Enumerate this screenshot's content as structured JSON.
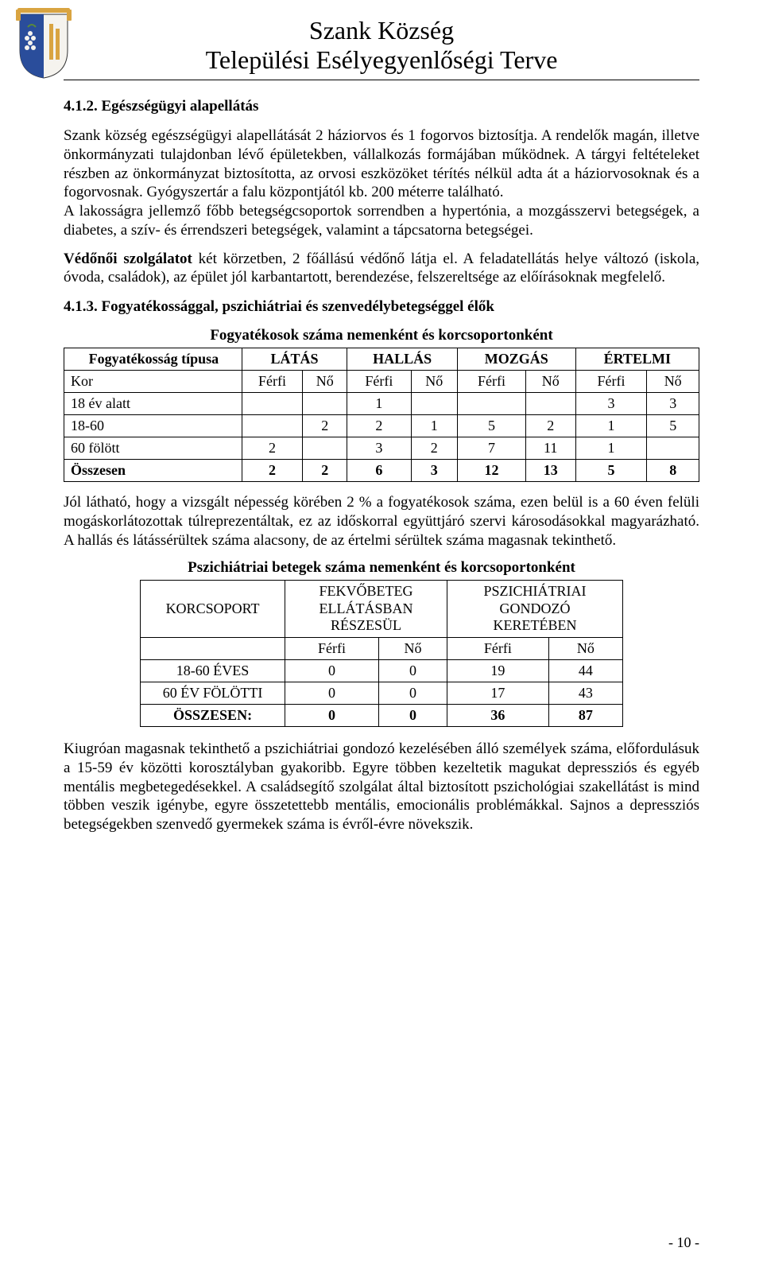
{
  "header": {
    "title1": "Szank Község",
    "title2": "Települési Esélyegyenlőségi Terve",
    "crest_colors": {
      "shield_blue": "#2a4d9b",
      "shield_white": "#ffffff",
      "ribbon_gold": "#d9a441",
      "grapes": "#f5f3ee",
      "leaf_green": "#5a8a3a"
    }
  },
  "section412": {
    "heading": "4.1.2. Egészségügyi alapellátás",
    "para1": "Szank község egészségügyi alapellátását 2 háziorvos és 1  fogorvos biztosítja. A rendelők magán, illetve önkormányzati tulajdonban lévő épületekben, vállalkozás formájában működnek. A tárgyi feltételeket részben az önkormányzat biztosította, az orvosi eszközöket térítés nélkül adta át a háziorvosoknak és a fogorvosnak. Gyógyszertár a falu központjától kb. 200 méterre található.",
    "para2": "A lakosságra jellemző főbb betegségcsoportok sorrendben a hypertónia, a mozgásszervi betegségek, a diabetes, a szív- és érrendszeri betegségek, valamint a tápcsatorna betegségei.",
    "para3_bold": "Védőnői szolgálatot",
    "para3_rest": " két körzetben, 2 főállású védőnő látja el. A feladatellátás helye változó (iskola, óvoda, családok), az épület jól karbantartott, berendezése, felszereltsége az előírásoknak megfelelő."
  },
  "section413": {
    "heading": "4.1.3. Fogyatékossággal, pszichiátriai és szenvedélybetegséggel élők",
    "table1": {
      "caption": "Fogyatékosok száma nemenként és korcsoportonként",
      "type_head": "Fogyatékosság típusa",
      "cats": [
        "LÁTÁS",
        "HALLÁS",
        "MOZGÁS",
        "ÉRTELMI"
      ],
      "kor_label": "Kor",
      "sex": [
        "Férfi",
        "Nő"
      ],
      "rows": [
        {
          "label": "18 év alatt",
          "cells": [
            "",
            "",
            "1",
            "",
            "",
            "",
            "3",
            "3"
          ]
        },
        {
          "label": "18-60",
          "cells": [
            "",
            "2",
            "2",
            "1",
            "5",
            "2",
            "1",
            "5"
          ]
        },
        {
          "label": "60 fölött",
          "cells": [
            "2",
            "",
            "3",
            "2",
            "7",
            "11",
            "1",
            ""
          ]
        },
        {
          "label": "Összesen",
          "cells": [
            "2",
            "2",
            "6",
            "3",
            "12",
            "13",
            "5",
            "8"
          ]
        }
      ]
    },
    "para_after_t1": "Jól látható, hogy a vizsgált népesség körében 2 % a fogyatékosok száma, ezen belül is a 60 éven felüli mogáskorlátozottak túlreprezentáltak, ez az időskorral együttjáró szervi károsodásokkal magyarázható. A hallás és látássérültek száma alacsony, de az értelmi sérültek száma magasnak tekinthető.",
    "table2": {
      "caption": "Pszichiátriai betegek száma nemenként és korcsoportonként",
      "kor_head": "KORCSOPORT",
      "grp1_l1": "FEKVŐBETEG",
      "grp1_l2": "ELLÁTÁSBAN",
      "grp1_l3": "RÉSZESÜL",
      "grp2_l1": "PSZICHIÁTRIAI",
      "grp2_l2": "GONDOZÓ",
      "grp2_l3": "KERETÉBEN",
      "sex": [
        "Férfi",
        "Nő"
      ],
      "rows": [
        {
          "label": "18-60 ÉVES",
          "cells": [
            "0",
            "0",
            "19",
            "44"
          ]
        },
        {
          "label": "60 ÉV FÖLÖTTI",
          "cells": [
            "0",
            "0",
            "17",
            "43"
          ]
        },
        {
          "label": "ÖSSZESEN:",
          "cells": [
            "0",
            "0",
            "36",
            "87"
          ],
          "bold": true
        }
      ]
    },
    "para_after_t2": "Kiugróan magasnak tekinthető a pszichiátriai gondozó kezelésében álló személyek száma, előfordulásuk a 15-59 év közötti korosztályban gyakoribb. Egyre többen kezeltetik magukat depressziós és egyéb mentális megbetegedésekkel. A családsegítő szolgálat által biztosított pszichológiai szakellátást is mind többen veszik igénybe, egyre összetettebb mentális, emocionális problémákkal. Sajnos a depressziós betegségekben szenvedő gyermekek száma is évről-évre növekszik."
  },
  "page_number": "- 10 -"
}
